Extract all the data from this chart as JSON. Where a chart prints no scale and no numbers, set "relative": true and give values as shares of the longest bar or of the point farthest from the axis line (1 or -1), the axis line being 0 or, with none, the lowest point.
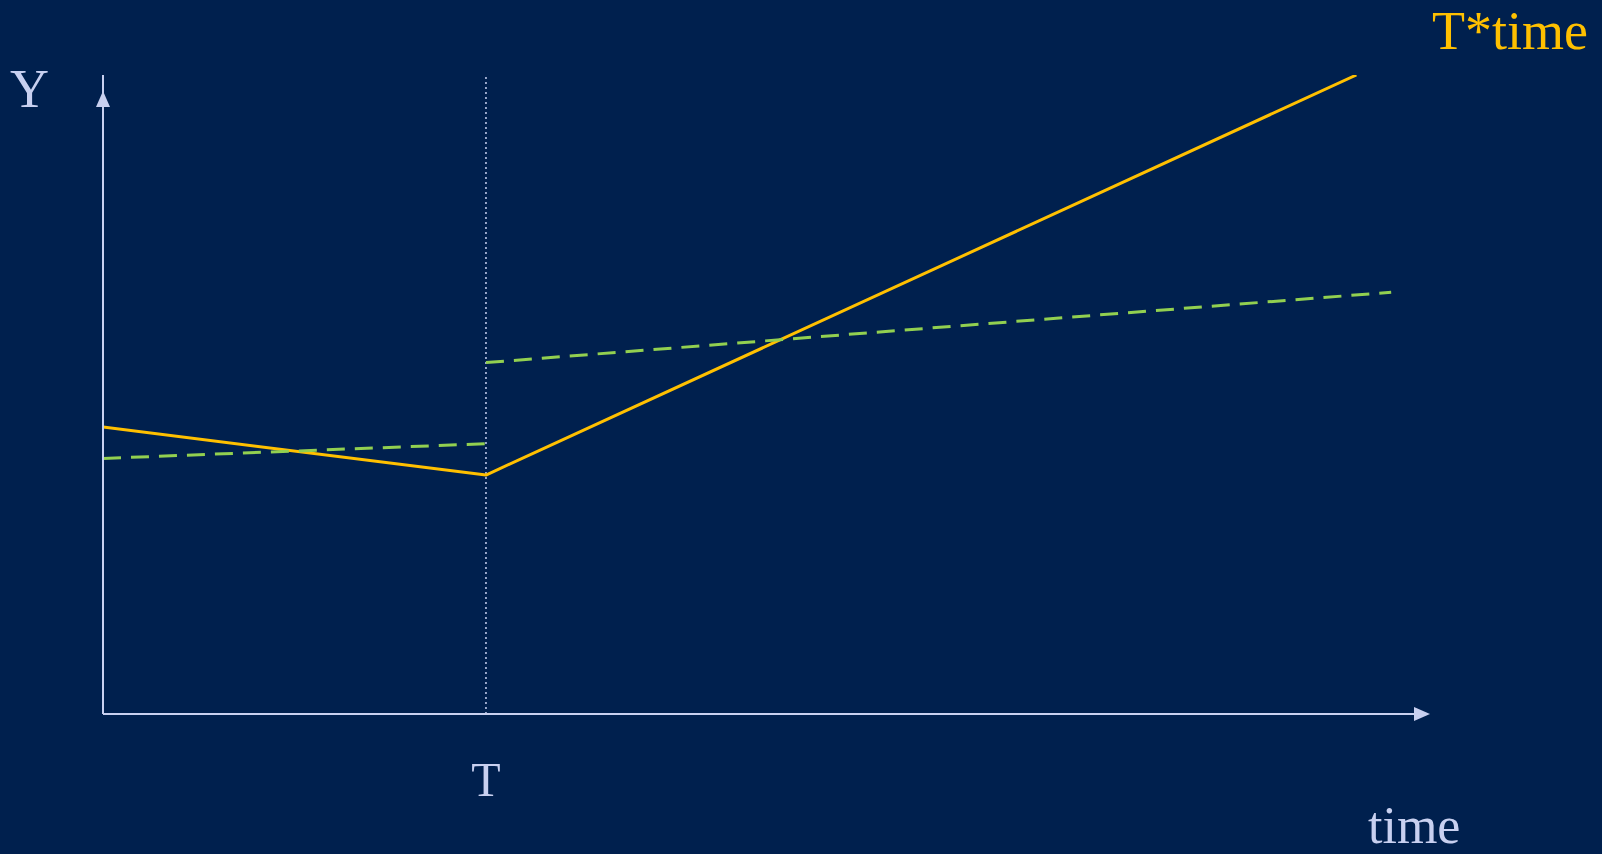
{
  "chart_data": {
    "type": "line",
    "relative": true,
    "xlabel": "time",
    "ylabel": "Y",
    "categories": [
      null,
      null,
      null,
      null,
      null,
      null,
      null,
      null,
      null,
      null,
      null,
      null,
      null,
      null,
      null,
      null,
      null,
      null,
      null,
      null,
      null,
      null,
      null,
      null,
      null,
      null,
      null,
      null,
      null,
      null,
      null,
      null,
      null,
      null,
      null,
      null,
      null,
      null,
      null
    ],
    "series": [
      {
        "name": "T*time",
        "color": "#ffc000",
        "line_style": "solid",
        "values": [
          0.449,
          null,
          null,
          null,
          null,
          null,
          null,
          null,
          null,
          null,
          null,
          0.374,
          null,
          null,
          null,
          null,
          null,
          null,
          null,
          null,
          null,
          null,
          null,
          null,
          null,
          null,
          null,
          null,
          null,
          null,
          null,
          null,
          null,
          null,
          null,
          null,
          1.0,
          null,
          null
        ]
      },
      {
        "color": "#92d050",
        "line_style": "dashed",
        "values": [
          0.4,
          null,
          null,
          null,
          null,
          null,
          null,
          null,
          null,
          null,
          null,
          0.423,
          null,
          null,
          null,
          null,
          null,
          null,
          null,
          null,
          null,
          null,
          null,
          null,
          null,
          null,
          null,
          null,
          null,
          null,
          null,
          null,
          null,
          null,
          null,
          null,
          null,
          null,
          null
        ]
      },
      {
        "color": "#92d050",
        "line_style": "dashed",
        "values": [
          null,
          null,
          null,
          null,
          null,
          null,
          null,
          null,
          null,
          null,
          null,
          0.55,
          null,
          null,
          null,
          null,
          null,
          null,
          null,
          null,
          null,
          null,
          null,
          null,
          null,
          null,
          null,
          null,
          null,
          null,
          null,
          null,
          null,
          null,
          null,
          null,
          null,
          0.66,
          null
        ]
      }
    ],
    "annotations": [
      "T"
    ],
    "legend": false,
    "marker": "none",
    "grid": false
  }
}
